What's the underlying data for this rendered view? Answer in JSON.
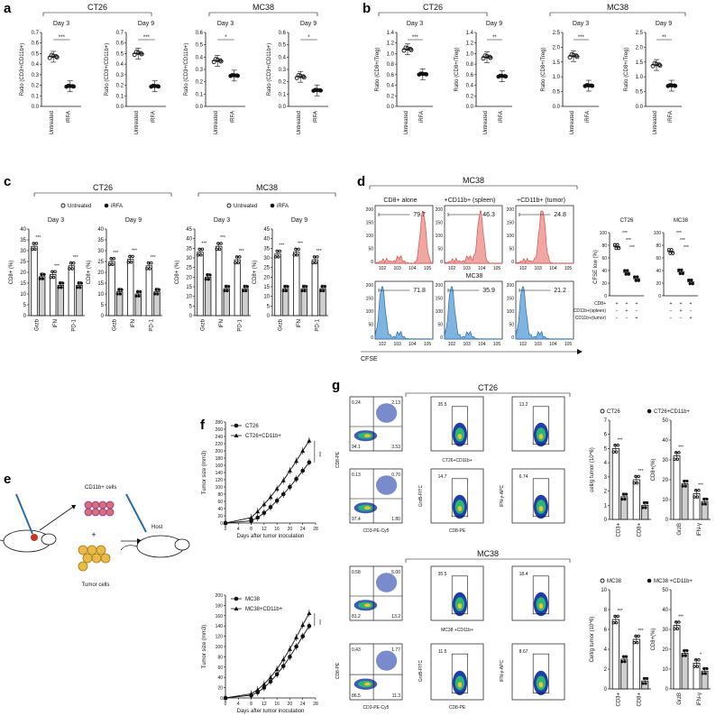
{
  "panels": {
    "a": {
      "label": "a",
      "groups": [
        {
          "name": "CT26",
          "days": [
            {
              "day": "Day 3",
              "ylabel": "Ratio (CD3+/CD11b+)",
              "yticks": [
                "0.0",
                "0.1",
                "0.2",
                "0.3",
                "0.4",
                "0.5",
                "0.6",
                "0.7"
              ],
              "sig": "***",
              "untreated": 0.47,
              "irfa": 0.19
            },
            {
              "day": "Day 9",
              "ylabel": "Ratio (CD3+/CD11b+)",
              "yticks": [
                "0.0",
                "0.1",
                "0.2",
                "0.3",
                "0.4",
                "0.5",
                "0.6",
                "0.7"
              ],
              "sig": "***",
              "untreated": 0.5,
              "irfa": 0.19
            }
          ]
        },
        {
          "name": "MC38",
          "days": [
            {
              "day": "Day 3",
              "ylabel": "Ratio (CD3+/CD11b+)",
              "yticks": [
                "0.0",
                "0.1",
                "0.2",
                "0.3",
                "0.4",
                "0.5",
                "0.6"
              ],
              "sig": "*",
              "untreated": 0.37,
              "irfa": 0.25
            },
            {
              "day": "Day 9",
              "ylabel": "Ratio (CD3+/CD11b+)",
              "yticks": [
                "0.0",
                "0.1",
                "0.2",
                "0.3",
                "0.4",
                "0.5",
                "0.6"
              ],
              "sig": "*",
              "untreated": 0.24,
              "irfa": 0.13
            }
          ]
        }
      ],
      "xcats": [
        "Untreated",
        "iRFA"
      ]
    },
    "b": {
      "label": "b",
      "groups": [
        {
          "name": "CT26",
          "days": [
            {
              "day": "Day 3",
              "ylabel": "Ratio (CD8+/Treg)",
              "yticks": [
                "0.0",
                "0.2",
                "0.4",
                "0.6",
                "0.8",
                "1.0",
                "1.2",
                "1.4"
              ],
              "sig": "***",
              "untreated": 1.08,
              "irfa": 0.61
            },
            {
              "day": "Day 9",
              "ylabel": "Ratio (CD8+/Treg)",
              "yticks": [
                "0.0",
                "0.2",
                "0.4",
                "0.6",
                "0.8",
                "1.0",
                "1.2",
                "1.4"
              ],
              "sig": "**",
              "untreated": 0.93,
              "irfa": 0.57
            }
          ]
        },
        {
          "name": "MC38",
          "days": [
            {
              "day": "Day 3",
              "ylabel": "Ratio (CD8+/Treg)",
              "yticks": [
                "0.0",
                "0.5",
                "1.0",
                "1.5",
                "2.0",
                "2.5"
              ],
              "sig": "***",
              "untreated": 1.7,
              "irfa": 0.7
            },
            {
              "day": "Day 9",
              "ylabel": "Ratio (CD8+/Treg)",
              "yticks": [
                "0.0",
                "0.5",
                "1.0",
                "1.5",
                "2.0",
                "2.5"
              ],
              "sig": "**",
              "untreated": 1.4,
              "irfa": 0.7
            }
          ]
        }
      ],
      "xcats": [
        "Untreated",
        "iRFA"
      ]
    },
    "c": {
      "label": "c",
      "legend": {
        "untreated": "Untreated",
        "irfa": "iRFA"
      },
      "groups": [
        {
          "name": "CT26",
          "days": [
            {
              "day": "Day 3",
              "ylabel": "CD8+ (%)",
              "yticks": [
                "0",
                "5",
                "10",
                "15",
                "20",
                "25",
                "30",
                "35",
                "40"
              ],
              "cats": [
                "Grzb",
                "IFN",
                "PD-1"
              ],
              "untreated": [
                32,
                19,
                23
              ],
              "irfa": [
                18,
                14,
                14
              ],
              "sig": [
                "***",
                "***",
                "***"
              ]
            },
            {
              "day": "Day 9",
              "ylabel": "CD8+ (%)",
              "yticks": [
                "0",
                "5",
                "10",
                "15",
                "20",
                "25",
                "30",
                "35",
                "40"
              ],
              "cats": [
                "Grzb",
                "IFN",
                "PD-1"
              ],
              "untreated": [
                25,
                26,
                23
              ],
              "irfa": [
                11,
                10,
                11
              ],
              "sig": [
                "***",
                "***",
                "***"
              ]
            }
          ]
        },
        {
          "name": "MC38",
          "days": [
            {
              "day": "Day 3",
              "ylabel": "CD8+ (%)",
              "yticks": [
                "0",
                "5",
                "10",
                "15",
                "20",
                "25",
                "30",
                "35",
                "40",
                "45"
              ],
              "cats": [
                "Grzb",
                "IFN",
                "PD-1"
              ],
              "untreated": [
                33,
                36,
                29
              ],
              "irfa": [
                20,
                14,
                14
              ],
              "sig": [
                "***",
                "***",
                "***"
              ]
            },
            {
              "day": "Day 9",
              "ylabel": "CD8+ (%)",
              "yticks": [
                "0",
                "5",
                "10",
                "15",
                "20",
                "25",
                "30",
                "35",
                "40",
                "45"
              ],
              "cats": [
                "Grzb",
                "IFN",
                "PD-1"
              ],
              "untreated": [
                32,
                33,
                29
              ],
              "irfa": [
                14,
                14,
                14
              ],
              "sig": [
                "***",
                "***",
                "***"
              ]
            }
          ]
        }
      ]
    },
    "d": {
      "label": "d",
      "title": "MC38",
      "cols": [
        "CD8+ alone",
        "+CD11b+ (spleen)",
        "+CD11b+ (tumor)"
      ],
      "row1": [
        "79.7",
        "46.3",
        "24.8"
      ],
      "row2_title": "MC38",
      "row2": [
        "71.8",
        "35.9",
        "21.2"
      ],
      "xlabel": "CFSE",
      "yticks": [
        "0",
        "50",
        "100",
        "150",
        "200"
      ],
      "xticks": [
        "10^2",
        "10^3",
        "10^4",
        "10^5"
      ],
      "summary": {
        "ylabel": "CFSE low (%)",
        "yticks": [
          "0",
          "20",
          "40",
          "60",
          "80",
          "100"
        ],
        "panels": [
          {
            "name": "CT26",
            "values": [
              78,
              37,
              27
            ]
          },
          {
            "name": "MC38",
            "values": [
              70,
              38,
              22
            ]
          }
        ],
        "rows": [
          {
            "label": "CD8+",
            "signs": [
              "+",
              "+",
              "+"
            ]
          },
          {
            "label": "CD11b+(spleen)",
            "signs": [
              "−",
              "+",
              "−"
            ]
          },
          {
            "label": "CD11b+(tumor)",
            "signs": [
              "−",
              "−",
              "+"
            ]
          }
        ]
      }
    },
    "e": {
      "label": "e",
      "cd11b": "CD11b+ cells",
      "tumor": "Tumor cells",
      "host": "Host",
      "plus": "+"
    },
    "f": {
      "label": "f",
      "xlabel": "Days after tumor inoculation",
      "ylabel": "Tumor size (mm3)",
      "xticks": [
        "0",
        "4",
        "8",
        "12",
        "16",
        "20",
        "24",
        "28"
      ],
      "top": {
        "yticks": [
          "0",
          "20",
          "40",
          "60",
          "80",
          "100",
          "120",
          "140",
          "160",
          "180",
          "200",
          "220",
          "240",
          "260",
          "280"
        ],
        "legend": [
          "CT26",
          "CT26+CD11b+"
        ],
        "sig": "***",
        "days": [
          0,
          8,
          10,
          12,
          14,
          16,
          18,
          20,
          22,
          24,
          26
        ],
        "series": [
          {
            "name": "CT26",
            "values": [
              0,
              6,
              15,
              28,
              44,
              62,
              80,
              100,
              122,
              145,
              168
            ]
          },
          {
            "name": "CT26+CD11b+",
            "values": [
              0,
              15,
              32,
              52,
              72,
              95,
              118,
              145,
              172,
              200,
              228
            ]
          }
        ]
      },
      "bottom": {
        "yticks": [
          "0",
          "20",
          "40",
          "60",
          "80",
          "100",
          "120",
          "140",
          "160",
          "180",
          "200"
        ],
        "legend": [
          "MC38",
          "MC38+CD11b+"
        ],
        "sig": "***",
        "days": [
          0,
          8,
          10,
          12,
          14,
          16,
          18,
          20,
          22,
          24,
          26
        ],
        "series": [
          {
            "name": "MC38",
            "values": [
              0,
              5,
              11,
              20,
              32,
              46,
              62,
              80,
              100,
              120,
              140
            ]
          },
          {
            "name": "MC38+CD11b+",
            "values": [
              0,
              8,
              16,
              27,
              40,
              56,
              75,
              95,
              118,
              142,
              165
            ]
          }
        ]
      }
    },
    "g": {
      "label": "g",
      "top_title": "CT26",
      "bottom_title": "MC38",
      "top_row1_quads": [
        "0.24",
        "2.13",
        "94.1",
        "3.53"
      ],
      "top_row2_quads": [
        "0.13",
        "0.70",
        "97.4",
        "1.80"
      ],
      "top_row1_gates": [
        "35.5",
        "13.2"
      ],
      "top_row2_gates": [
        "14.7",
        "6.74"
      ],
      "bottom_row1_quads": [
        "0.58",
        "5.00",
        "81.2",
        "13.2"
      ],
      "bottom_row2_quads": [
        "0.43",
        "1.77",
        "86.5",
        "11.3"
      ],
      "bottom_row1_gates": [
        "35.5",
        "18.4"
      ],
      "bottom_row2_gates": [
        "11.5",
        "8.67"
      ],
      "top_mid_label": "CT26+CD11b+",
      "bottom_mid_label": "MC38 +CD11b+",
      "xlab1": "CD3-PE-Cy5",
      "xlab2": "CD8-PE",
      "ylab1": "CD8-PE",
      "ylab2": "GrzB-FITC",
      "ylab3": "IFN-γ-APC",
      "top_bars": {
        "legend": [
          "CT26",
          "CT26+CD11b+"
        ],
        "left": {
          "ylabel": "cell/g tumor (10^6)",
          "yticks": [
            "0",
            "1",
            "2",
            "3",
            "4",
            "5",
            "6",
            "7"
          ],
          "cats": [
            "CD3+",
            "CD8+"
          ],
          "a": [
            5.0,
            2.8
          ],
          "b": [
            1.6,
            1.0
          ],
          "sig": [
            "***",
            "***"
          ]
        },
        "right": {
          "ylabel": "CD8+(%)",
          "yticks": [
            "0",
            "10",
            "20",
            "30",
            "40",
            "50"
          ],
          "cats": [
            "GrzB",
            "IFN-γ"
          ],
          "a": [
            32,
            13
          ],
          "b": [
            18,
            9
          ],
          "sig": [
            "***",
            "***"
          ]
        }
      },
      "bottom_bars": {
        "legend": [
          "MC38",
          "MC38 +CD11b+"
        ],
        "left": {
          "ylabel": "Cell/g tumor (10^6)",
          "yticks": [
            "0",
            "2",
            "4",
            "6",
            "8",
            "10"
          ],
          "cats": [
            "CD3+",
            "CD8+"
          ],
          "a": [
            7.0,
            5.0
          ],
          "b": [
            3.0,
            0.8
          ],
          "sig": [
            "***",
            "***"
          ]
        },
        "right": {
          "ylabel": "CD8+(%)",
          "yticks": [
            "0",
            "10",
            "20",
            "30",
            "40",
            "50"
          ],
          "cats": [
            "GrzB",
            "IFN-γ"
          ],
          "a": [
            32,
            13
          ],
          "b": [
            18,
            9
          ],
          "sig": [
            "***",
            "*"
          ]
        }
      }
    }
  },
  "colors": {
    "hist_red": "#f0a6a3",
    "hist_red_line": "#d9534f",
    "hist_blue": "#7fb3e0",
    "hist_blue_line": "#2a6fb5",
    "gray_bar": "#cfcfcf"
  }
}
